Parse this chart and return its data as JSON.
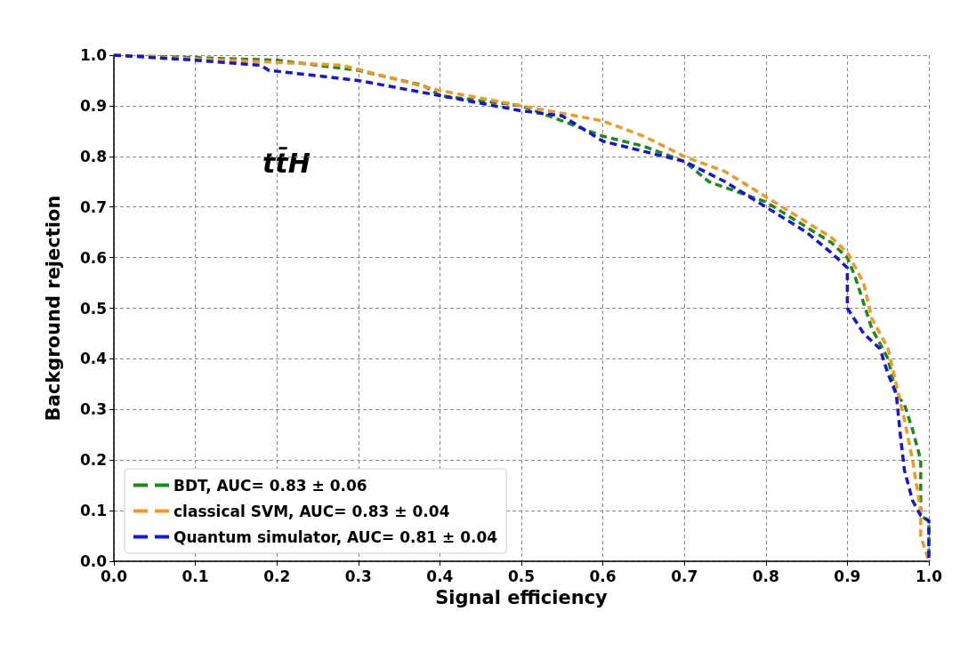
{
  "chart_data": {
    "type": "line",
    "xlabel": "Signal efficiency",
    "ylabel": "Background rejection",
    "annotations": [
      "tt̄H"
    ],
    "xlim": [
      0,
      1
    ],
    "ylim": [
      0,
      1
    ],
    "xticks": [
      {
        "value": 0,
        "label": "0.0"
      },
      0.1,
      0.2,
      0.3,
      0.4,
      0.5,
      0.6,
      0.7,
      0.8,
      0.9,
      {
        "value": 1,
        "label": "1.0"
      }
    ],
    "yticks": [
      {
        "value": 0,
        "label": "0.0"
      },
      0.1,
      0.2,
      0.3,
      0.4,
      0.5,
      0.6,
      0.7,
      0.8,
      0.9,
      {
        "value": 1,
        "label": "1.0"
      }
    ],
    "grid": true,
    "legend": "bottom left",
    "line_style": "dashed",
    "marker": "none",
    "series": [
      {
        "name": "BDT, AUC= 0.83 ± 0.06",
        "color": "#1a8a1a",
        "x": [
          0,
          0.2,
          0.3,
          0.38,
          0.4,
          0.5,
          0.55,
          0.6,
          0.65,
          0.7,
          0.73,
          0.8,
          0.85,
          0.88,
          0.9,
          0.91,
          0.92,
          0.93,
          0.95,
          0.96,
          0.97,
          0.98,
          0.99,
          0.99,
          1.0,
          1.0
        ],
        "values": [
          1,
          0.99,
          0.97,
          0.94,
          0.92,
          0.9,
          0.87,
          0.84,
          0.82,
          0.79,
          0.75,
          0.71,
          0.66,
          0.63,
          0.6,
          0.56,
          0.51,
          0.46,
          0.4,
          0.33,
          0.31,
          0.26,
          0.2,
          0.09,
          0.08,
          0
        ]
      },
      {
        "name": "classical SVM, AUC= 0.83 ± 0.04",
        "color": "#f5961e",
        "x": [
          0,
          0.28,
          0.4,
          0.5,
          0.6,
          0.65,
          0.7,
          0.75,
          0.8,
          0.85,
          0.88,
          0.9,
          0.92,
          0.93,
          0.95,
          0.96,
          0.97,
          0.98,
          0.99,
          0.99,
          1.0
        ],
        "values": [
          1,
          0.98,
          0.93,
          0.9,
          0.87,
          0.84,
          0.8,
          0.77,
          0.72,
          0.67,
          0.64,
          0.61,
          0.55,
          0.48,
          0.42,
          0.35,
          0.28,
          0.2,
          0.1,
          0.05,
          0
        ]
      },
      {
        "name": "Quantum simulator, AUC= 0.81 ± 0.04",
        "color": "#1414e6",
        "x": [
          0,
          0.1,
          0.18,
          0.19,
          0.3,
          0.4,
          0.5,
          0.55,
          0.6,
          0.7,
          0.75,
          0.8,
          0.85,
          0.88,
          0.9,
          0.9,
          0.92,
          0.94,
          0.95,
          0.96,
          0.965,
          0.97,
          0.98,
          0.99,
          1.0,
          1.0
        ],
        "values": [
          1,
          0.99,
          0.98,
          0.97,
          0.95,
          0.92,
          0.89,
          0.88,
          0.83,
          0.79,
          0.75,
          0.7,
          0.65,
          0.61,
          0.58,
          0.5,
          0.45,
          0.42,
          0.37,
          0.33,
          0.25,
          0.18,
          0.12,
          0.09,
          0.08,
          0
        ]
      }
    ]
  }
}
